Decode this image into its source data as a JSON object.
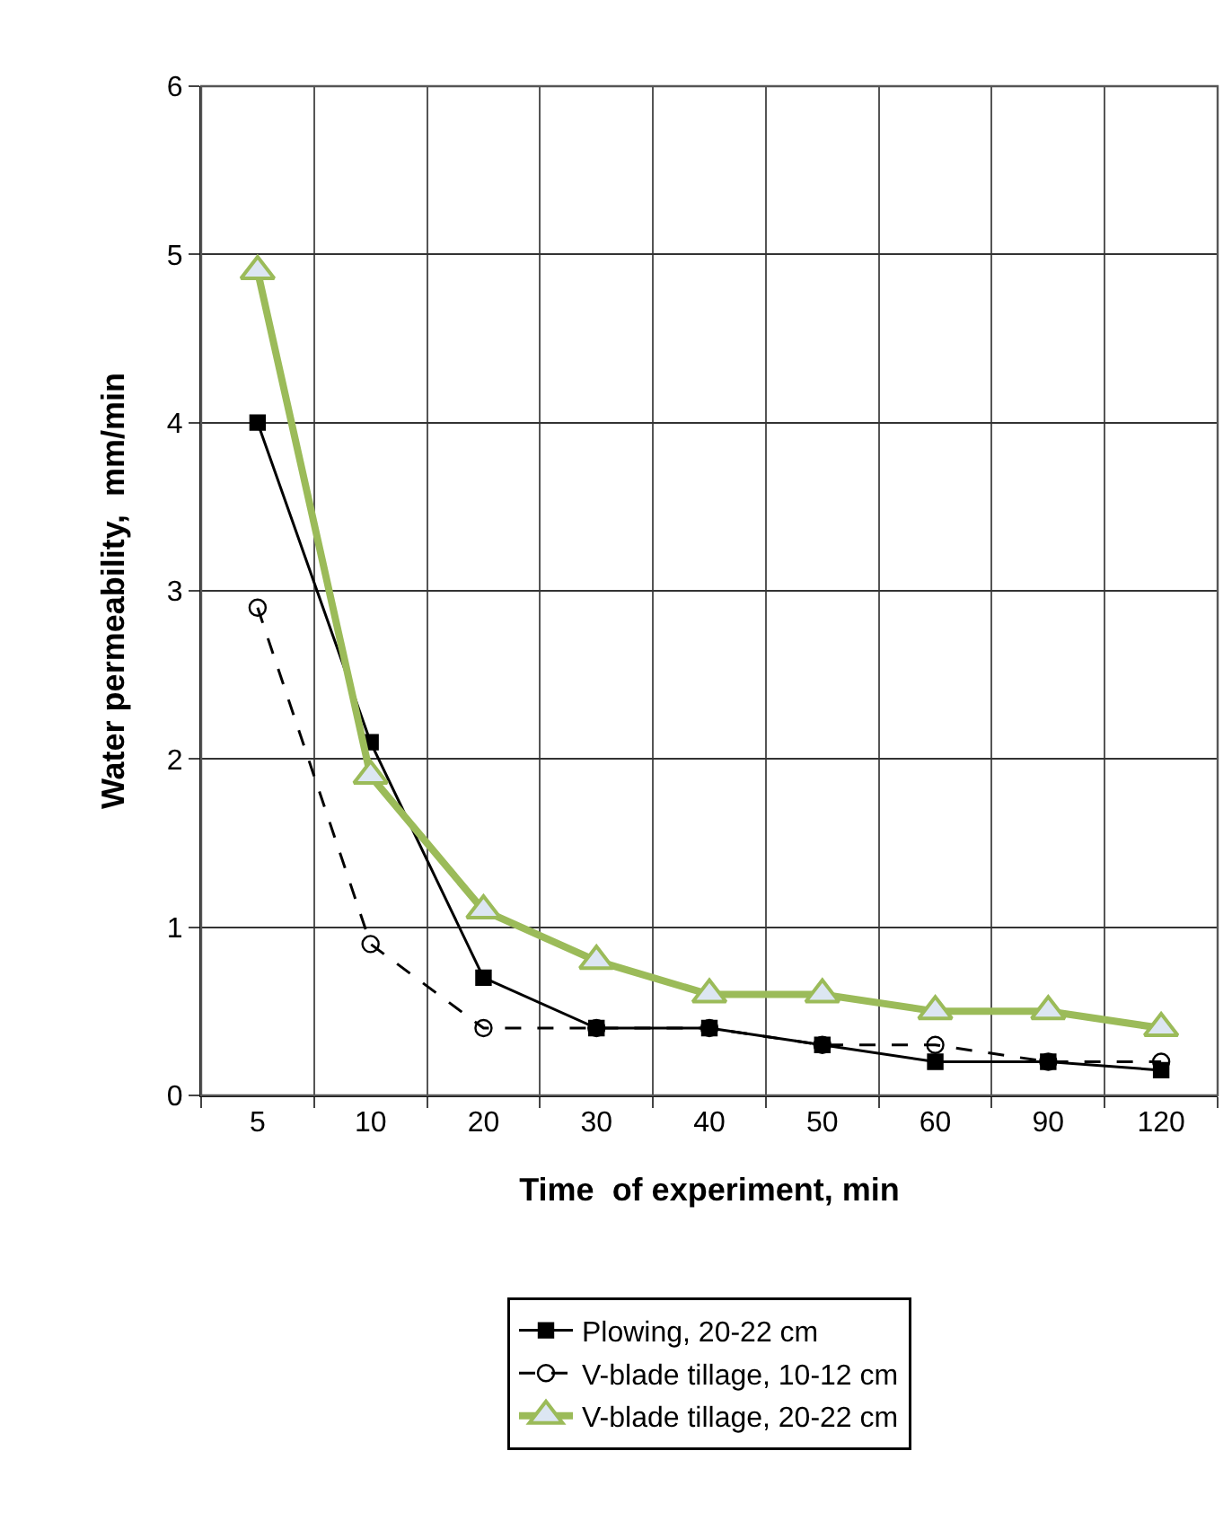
{
  "chart_data": {
    "type": "line",
    "xlabel": "Time  of experiment, min",
    "ylabel": "Water permeability,  mm/min",
    "categories": [
      "5",
      "10",
      "20",
      "30",
      "40",
      "50",
      "60",
      "90",
      "120"
    ],
    "series": [
      {
        "name": "Plowing, 20-22 cm",
        "color": "#000000",
        "marker": "square",
        "line_style": "solid",
        "values": [
          4.0,
          2.1,
          0.7,
          0.4,
          0.4,
          0.3,
          0.2,
          0.2,
          0.15
        ]
      },
      {
        "name": "V-blade tillage, 10-12 cm",
        "color": "#000000",
        "marker": "circle",
        "line_style": "dashed",
        "values": [
          2.9,
          0.9,
          0.4,
          0.4,
          0.4,
          0.3,
          0.3,
          0.2,
          0.2
        ]
      },
      {
        "name": "V-blade tillage, 20-22 cm",
        "color": "#9bbb59",
        "marker": "triangle",
        "line_style": "solid",
        "values": [
          4.9,
          1.9,
          1.1,
          0.8,
          0.6,
          0.6,
          0.5,
          0.5,
          0.4
        ]
      }
    ],
    "ylim": [
      0,
      6
    ],
    "yticks": [
      0,
      1,
      2,
      3,
      4,
      5,
      6
    ],
    "grid": true,
    "legend": "bottom"
  }
}
